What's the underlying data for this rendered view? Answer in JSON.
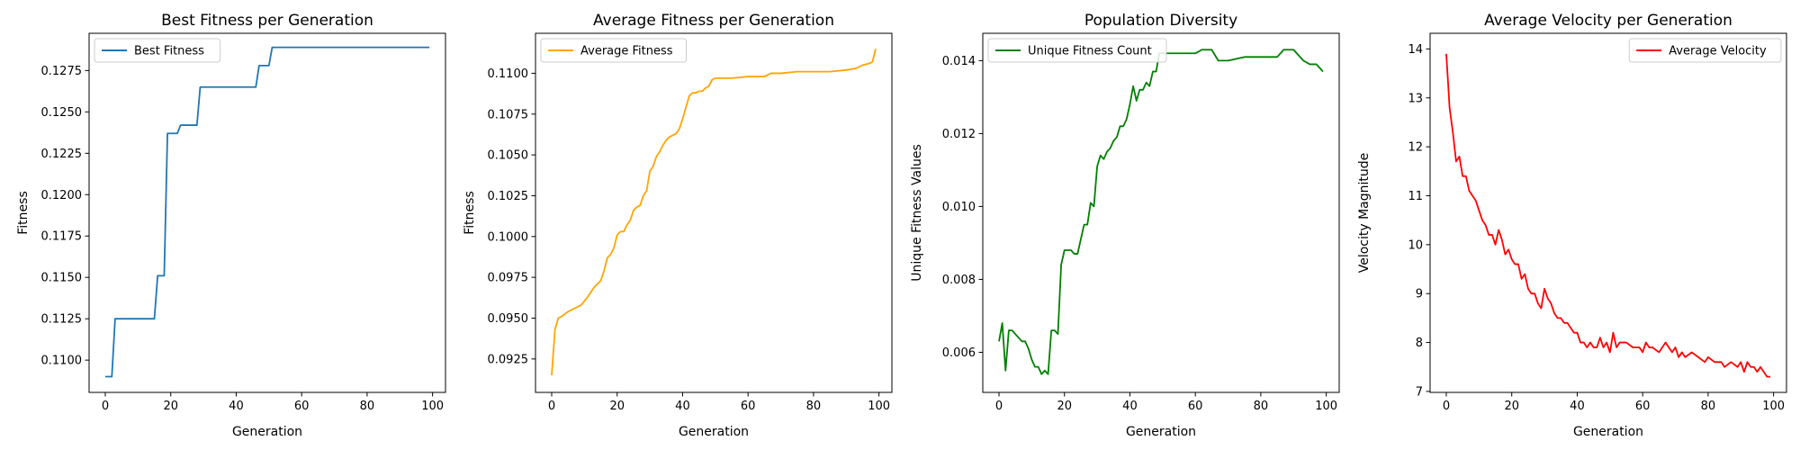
{
  "chart_data": [
    {
      "type": "line",
      "title": "Best Fitness per Generation",
      "xlabel": "Generation",
      "ylabel": "Fitness",
      "xlim": [
        -4.95,
        103.95
      ],
      "ylim": [
        0.10805,
        0.12975
      ],
      "xticks": [
        0,
        20,
        40,
        60,
        80,
        100
      ],
      "yticks": [
        0.11,
        0.1125,
        0.115,
        0.1175,
        0.12,
        0.1225,
        0.125,
        0.1275
      ],
      "ytick_labels": [
        "0.1100",
        "0.1125",
        "0.1150",
        "0.1175",
        "0.1200",
        "0.1225",
        "0.1250",
        "0.1275"
      ],
      "legend_position": "upper-left",
      "grid": false,
      "series": [
        {
          "name": "Best Fitness",
          "color": "#1f77b4",
          "x": [
            0,
            2,
            3,
            15,
            16,
            18,
            19,
            22,
            23,
            28,
            29,
            46,
            47,
            50,
            51,
            99
          ],
          "y": [
            0.109,
            0.109,
            0.1125,
            0.1125,
            0.1151,
            0.1151,
            0.1237,
            0.1237,
            0.1242,
            0.1242,
            0.1265,
            0.1265,
            0.1278,
            0.1278,
            0.1289,
            0.1289
          ]
        }
      ]
    },
    {
      "type": "line",
      "title": "Average Fitness per Generation",
      "xlabel": "Generation",
      "ylabel": "Fitness",
      "xlim": [
        -4.95,
        103.95
      ],
      "ylim": [
        0.09045,
        0.11245
      ],
      "xticks": [
        0,
        20,
        40,
        60,
        80,
        100
      ],
      "yticks": [
        0.0925,
        0.095,
        0.0975,
        0.1,
        0.1025,
        0.105,
        0.1075,
        0.11
      ],
      "ytick_labels": [
        "0.0925",
        "0.0950",
        "0.0975",
        "0.1000",
        "0.1025",
        "0.1050",
        "0.1075",
        "0.1100"
      ],
      "legend_position": "upper-left",
      "grid": false,
      "series": [
        {
          "name": "Average Fitness",
          "color": "#ffa500",
          "x": [
            0,
            1,
            2,
            3,
            5,
            7,
            9,
            11,
            13,
            15,
            16,
            17,
            18,
            19,
            20,
            21,
            22,
            23,
            24,
            25,
            26,
            27,
            28,
            29,
            30,
            31,
            32,
            33,
            34,
            35,
            36,
            37,
            38,
            39,
            40,
            41,
            42,
            43,
            44,
            45,
            46,
            47,
            48,
            49,
            50,
            52,
            55,
            60,
            65,
            67,
            70,
            75,
            80,
            85,
            90,
            93,
            95,
            97,
            98,
            99
          ],
          "y": [
            0.0915,
            0.0943,
            0.095,
            0.0951,
            0.0954,
            0.0956,
            0.0958,
            0.0963,
            0.0969,
            0.0973,
            0.0979,
            0.0987,
            0.0989,
            0.0993,
            0.1001,
            0.1003,
            0.1003,
            0.1007,
            0.101,
            0.1016,
            0.1018,
            0.1019,
            0.1025,
            0.1028,
            0.104,
            0.1043,
            0.1049,
            0.1052,
            0.1056,
            0.1059,
            0.1061,
            0.1062,
            0.1063,
            0.1066,
            0.1072,
            0.1079,
            0.1086,
            0.1088,
            0.1088,
            0.1089,
            0.1089,
            0.1091,
            0.1092,
            0.1096,
            0.1097,
            0.1097,
            0.1097,
            0.1098,
            0.1098,
            0.11,
            0.11,
            0.1101,
            0.1101,
            0.1101,
            0.1102,
            0.1103,
            0.1105,
            0.1106,
            0.1107,
            0.1115
          ]
        }
      ]
    },
    {
      "type": "line",
      "title": "Population Diversity",
      "xlabel": "Generation",
      "ylabel": "Unique Fitness Values",
      "xlim": [
        -4.95,
        103.95
      ],
      "ylim": [
        0.0049,
        0.01475
      ],
      "xticks": [
        0,
        20,
        40,
        60,
        80,
        100
      ],
      "yticks": [
        0.006,
        0.008,
        0.01,
        0.012,
        0.014
      ],
      "ytick_labels": [
        "0.006",
        "0.008",
        "0.010",
        "0.012",
        "0.014"
      ],
      "legend_position": "upper-left",
      "grid": false,
      "series": [
        {
          "name": "Unique Fitness Count",
          "color": "#008000",
          "x": [
            0,
            1,
            2,
            3,
            4,
            5,
            6,
            7,
            8,
            9,
            10,
            11,
            12,
            13,
            14,
            15,
            16,
            17,
            18,
            19,
            20,
            21,
            22,
            23,
            24,
            25,
            26,
            27,
            28,
            29,
            30,
            31,
            32,
            33,
            34,
            35,
            36,
            37,
            38,
            39,
            40,
            41,
            42,
            43,
            44,
            45,
            46,
            47,
            48,
            49,
            50,
            51,
            55,
            60,
            62,
            65,
            67,
            70,
            75,
            80,
            85,
            87,
            90,
            93,
            95,
            97,
            98,
            99
          ],
          "y": [
            0.0063,
            0.0068,
            0.0055,
            0.0066,
            0.0066,
            0.0065,
            0.0064,
            0.0063,
            0.0063,
            0.0061,
            0.0058,
            0.0056,
            0.0056,
            0.0054,
            0.0055,
            0.0054,
            0.0066,
            0.0066,
            0.0065,
            0.0084,
            0.0088,
            0.0088,
            0.0088,
            0.0087,
            0.0087,
            0.0091,
            0.0095,
            0.0095,
            0.0101,
            0.01,
            0.0111,
            0.0114,
            0.0113,
            0.0115,
            0.0116,
            0.0118,
            0.0119,
            0.0122,
            0.0122,
            0.0124,
            0.0128,
            0.0133,
            0.0129,
            0.0132,
            0.0132,
            0.0134,
            0.0133,
            0.0137,
            0.0137,
            0.0142,
            0.0142,
            0.0142,
            0.0142,
            0.0142,
            0.0143,
            0.0143,
            0.014,
            0.014,
            0.0141,
            0.0141,
            0.0141,
            0.0143,
            0.0143,
            0.014,
            0.0139,
            0.0139,
            0.0138,
            0.0137
          ]
        }
      ]
    },
    {
      "type": "line",
      "title": "Average Velocity per Generation",
      "xlabel": "Generation",
      "ylabel": "Velocity Magnitude",
      "xlim": [
        -4.95,
        103.95
      ],
      "ylim": [
        6.98,
        14.32
      ],
      "xticks": [
        0,
        20,
        40,
        60,
        80,
        100
      ],
      "yticks": [
        7,
        8,
        9,
        10,
        11,
        12,
        13,
        14
      ],
      "ytick_labels": [
        "7",
        "8",
        "9",
        "10",
        "11",
        "12",
        "13",
        "14"
      ],
      "legend_position": "upper-right",
      "grid": false,
      "series": [
        {
          "name": "Average Velocity",
          "color": "#ff0000",
          "x": [
            0,
            1,
            2,
            3,
            4,
            5,
            6,
            7,
            8,
            9,
            10,
            11,
            12,
            13,
            14,
            15,
            16,
            17,
            18,
            19,
            20,
            21,
            22,
            23,
            24,
            25,
            26,
            27,
            28,
            29,
            30,
            31,
            32,
            33,
            34,
            35,
            36,
            37,
            38,
            39,
            40,
            41,
            42,
            43,
            44,
            45,
            46,
            47,
            48,
            49,
            50,
            51,
            52,
            53,
            55,
            57,
            59,
            60,
            61,
            62,
            63,
            65,
            67,
            68,
            69,
            70,
            71,
            72,
            73,
            75,
            77,
            79,
            80,
            82,
            84,
            85,
            87,
            89,
            90,
            91,
            92,
            93,
            94,
            95,
            96,
            97,
            98,
            99
          ],
          "y": [
            13.9,
            12.8,
            12.3,
            11.7,
            11.8,
            11.4,
            11.4,
            11.1,
            11.0,
            10.9,
            10.7,
            10.5,
            10.4,
            10.2,
            10.2,
            10.0,
            10.3,
            10.1,
            9.8,
            9.9,
            9.7,
            9.6,
            9.6,
            9.3,
            9.4,
            9.1,
            9.0,
            9.0,
            8.8,
            8.7,
            9.1,
            8.9,
            8.8,
            8.6,
            8.5,
            8.5,
            8.4,
            8.4,
            8.3,
            8.2,
            8.2,
            8.0,
            8.0,
            7.9,
            8.0,
            7.9,
            7.9,
            8.1,
            7.9,
            8.0,
            7.8,
            8.2,
            7.9,
            8.0,
            8.0,
            7.9,
            7.9,
            7.8,
            8.0,
            7.9,
            7.9,
            7.8,
            8.0,
            7.9,
            7.8,
            7.9,
            7.7,
            7.8,
            7.7,
            7.8,
            7.7,
            7.6,
            7.7,
            7.6,
            7.6,
            7.5,
            7.6,
            7.5,
            7.6,
            7.4,
            7.6,
            7.5,
            7.5,
            7.4,
            7.5,
            7.4,
            7.3,
            7.3
          ]
        }
      ]
    }
  ]
}
